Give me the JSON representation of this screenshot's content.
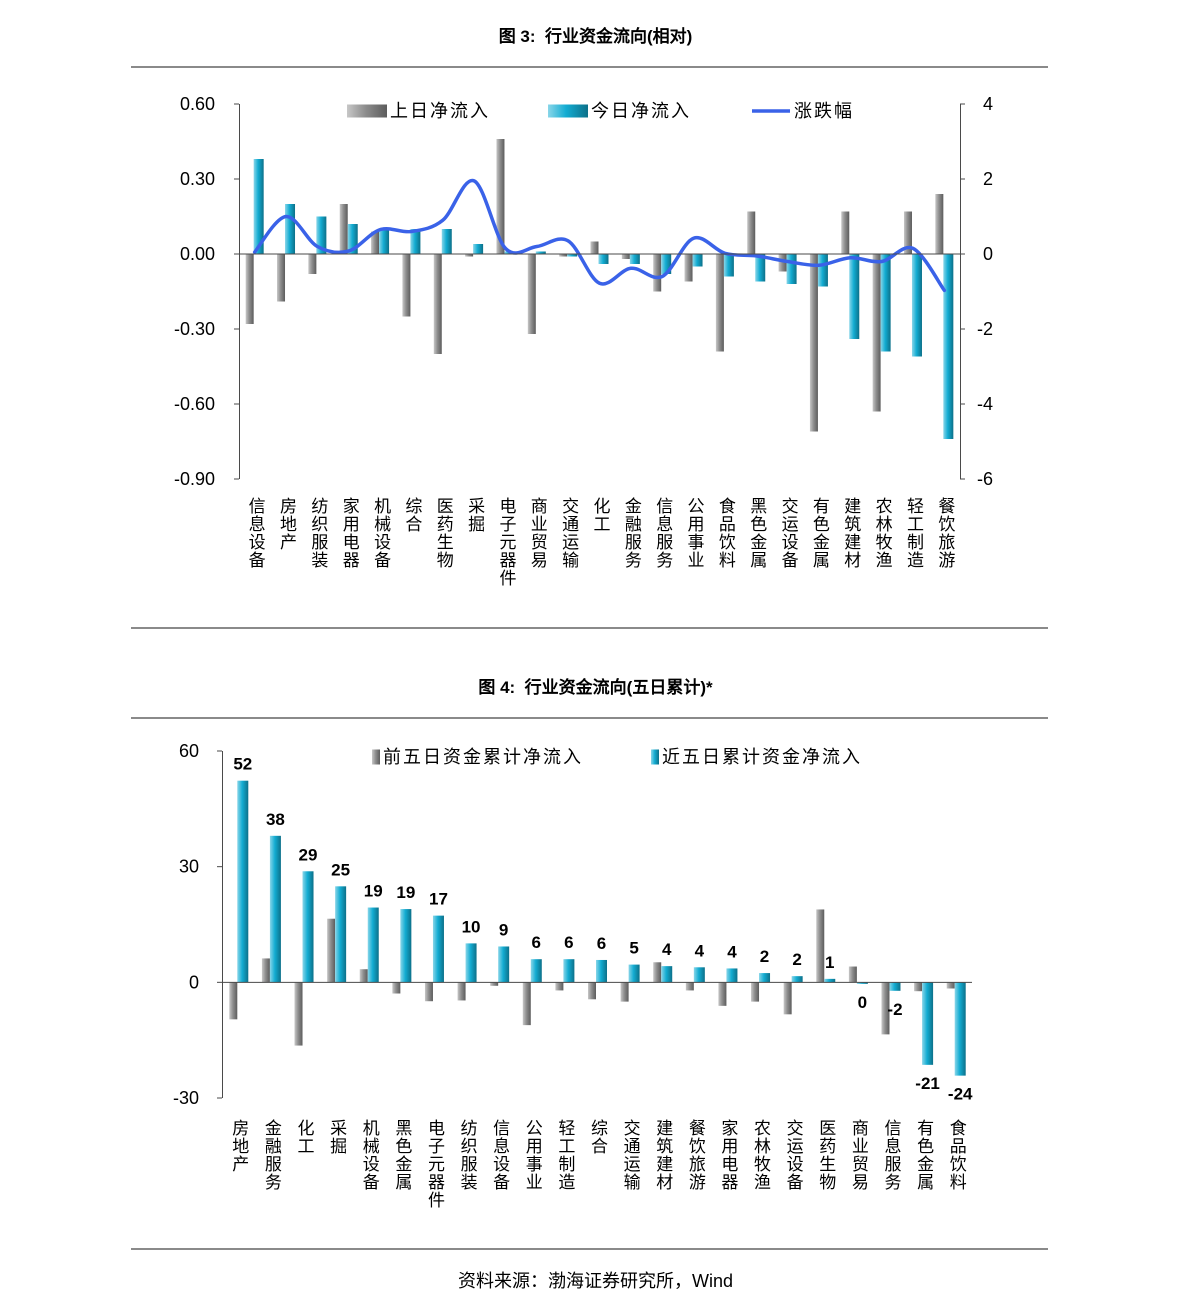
{
  "source": "资料来源：渤海证券研究所，Wind",
  "chart_data": [
    {
      "type": "bar",
      "title": "图 3:  行业资金流向(相对)",
      "categories": [
        "信息设备",
        "房地产",
        "纺织服装",
        "家用电器",
        "机械设备",
        "综合",
        "医药生物",
        "采掘",
        "电子元器件",
        "商业贸易",
        "交通运输",
        "化工",
        "金融服务",
        "信息服务",
        "公用事业",
        "食品饮料",
        "黑色金属",
        "交运设备",
        "有色金属",
        "建筑建材",
        "农林牧渔",
        "轻工制造",
        "餐饮旅游"
      ],
      "series": [
        {
          "name": "上日净流入",
          "color": "#8e8e8e",
          "values": [
            -0.28,
            -0.19,
            -0.08,
            0.2,
            0.09,
            -0.25,
            -0.4,
            -0.01,
            0.46,
            -0.32,
            -0.01,
            0.05,
            -0.02,
            -0.15,
            -0.11,
            -0.39,
            0.17,
            -0.07,
            -0.71,
            0.17,
            -0.63,
            0.17,
            0.24
          ]
        },
        {
          "name": "今日净流入",
          "color": "#13acd2",
          "values": [
            0.38,
            0.2,
            0.15,
            0.12,
            0.1,
            0.1,
            0.1,
            0.04,
            0.01,
            0.01,
            -0.01,
            -0.04,
            -0.04,
            -0.08,
            -0.05,
            -0.09,
            -0.11,
            -0.12,
            -0.13,
            -0.34,
            -0.39,
            -0.41,
            -0.74
          ]
        }
      ],
      "ylim": [
        -0.9,
        0.6
      ],
      "yticks": [
        0.6,
        0.3,
        0,
        -0.3,
        -0.6,
        -0.9
      ],
      "ytick_labels": [
        "0.60",
        "0.30",
        "0.00",
        "-0.30",
        "-0.60",
        "-0.90"
      ],
      "secondary": {
        "type": "line",
        "ylim": [
          -6,
          4
        ],
        "yticks": [
          4,
          2,
          0,
          -2,
          -4,
          -6
        ],
        "ytick_labels": [
          "4",
          "2",
          "0",
          "-2",
          "-4",
          "-6"
        ],
        "series": [
          {
            "name": "涨跌幅",
            "color": "#3a62e8",
            "values": [
              0.05,
              1.0,
              0.2,
              0.08,
              0.65,
              0.6,
              0.9,
              1.95,
              0.15,
              0.2,
              0.35,
              -0.78,
              -0.38,
              -0.6,
              0.42,
              0.02,
              -0.05,
              -0.2,
              -0.3,
              -0.1,
              -0.2,
              0.15,
              -0.97
            ]
          }
        ]
      },
      "legend": "top",
      "grid": false
    },
    {
      "type": "bar",
      "title": "图 4:  行业资金流向(五日累计)*",
      "categories": [
        "房地产",
        "金融服务",
        "化工",
        "采掘",
        "机械设备",
        "黑色金属",
        "电子元器件",
        "纺织服装",
        "信息设备",
        "公用事业",
        "轻工制造",
        "综合",
        "交通运输",
        "建筑建材",
        "餐饮旅游",
        "家用电器",
        "农林牧渔",
        "交运设备",
        "医药生物",
        "商业贸易",
        "信息服务",
        "有色金属",
        "食品饮料"
      ],
      "series": [
        {
          "name": "前五日资金累计净流入",
          "color": "#8e8e8e",
          "values": [
            -9.6,
            6.2,
            -16.4,
            16.5,
            3.4,
            -2.9,
            -4.9,
            -4.7,
            -0.9,
            -11.1,
            -2.1,
            -4.4,
            -5.0,
            5.2,
            -2.1,
            -6.1,
            -5.0,
            -8.3,
            18.9,
            4.1,
            -13.5,
            -2.3,
            -1.6
          ]
        },
        {
          "name": "近五日累计资金净流入",
          "color": "#13acd2",
          "values": [
            52.3,
            38.0,
            28.8,
            24.9,
            19.4,
            19.0,
            17.3,
            10.1,
            9.3,
            6.0,
            6.0,
            5.8,
            4.6,
            4.2,
            3.9,
            3.6,
            2.4,
            1.6,
            0.9,
            -0.4,
            -2.2,
            -21.4,
            -24.2
          ],
          "data_labels": [
            "52",
            "38",
            "29",
            "25",
            "19",
            "19",
            "17",
            "10",
            "9",
            "6",
            "6",
            "6",
            "5",
            "4",
            "4",
            "4",
            "2",
            "2",
            "1",
            "0",
            "-2",
            "-21",
            "-24"
          ]
        }
      ],
      "ylim": [
        -30,
        60
      ],
      "yticks": [
        60,
        30,
        0,
        -30
      ],
      "ytick_labels": [
        "60",
        "30",
        "0",
        "-30"
      ],
      "legend": "top",
      "grid": false
    }
  ]
}
